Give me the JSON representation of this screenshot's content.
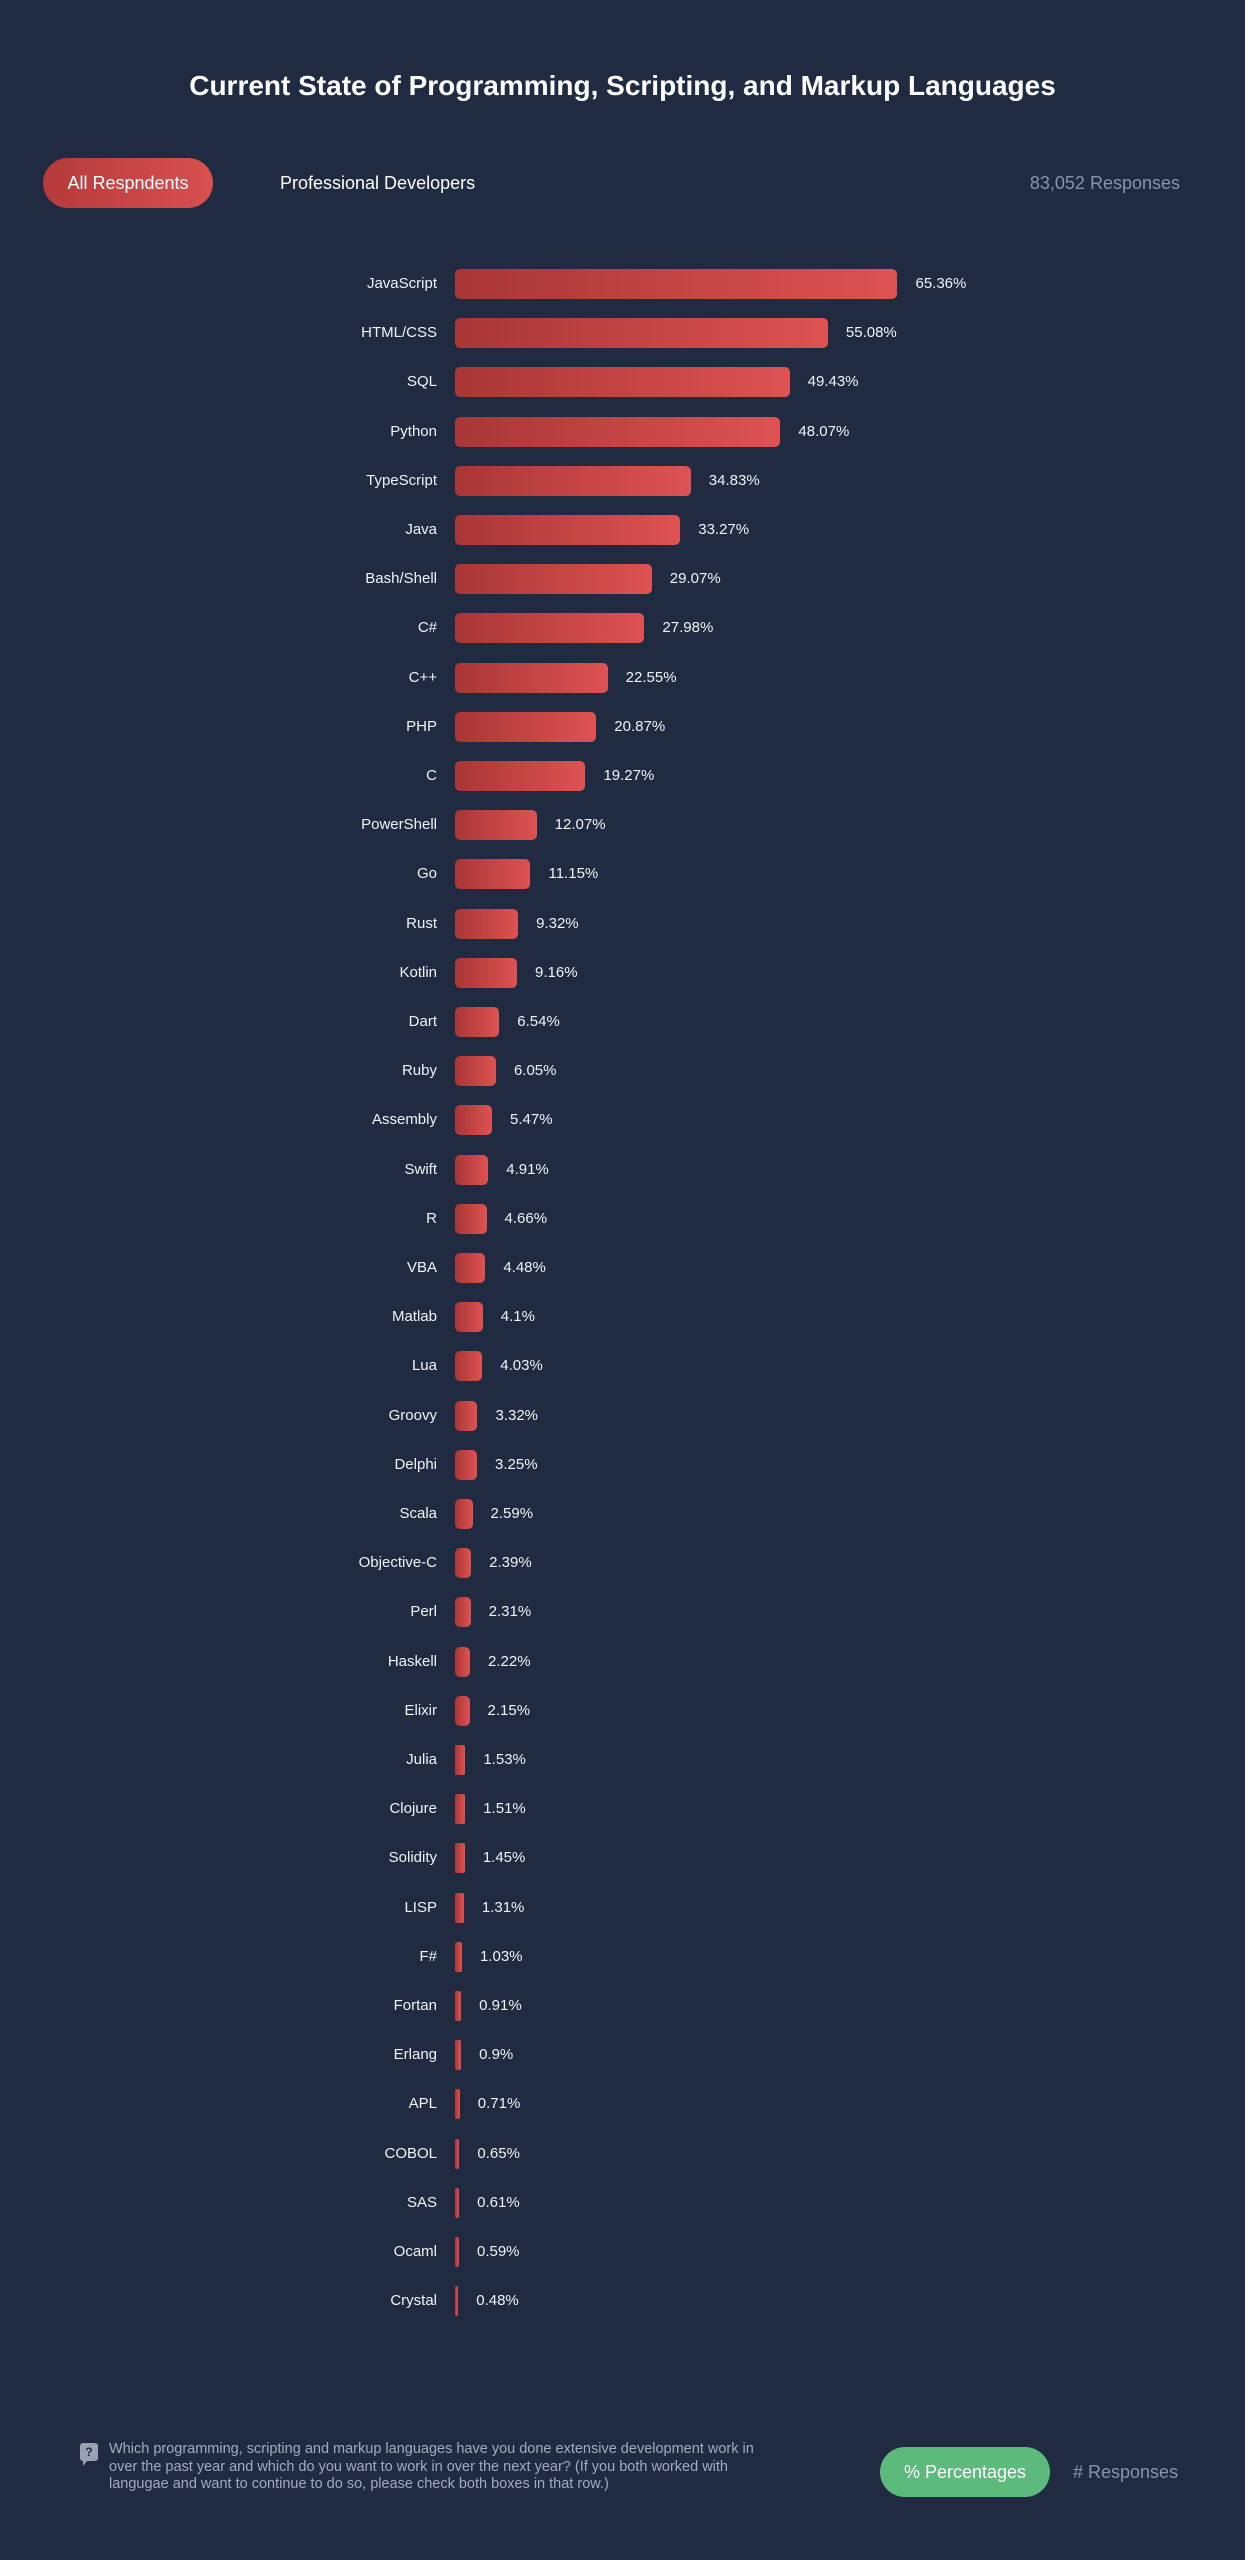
{
  "header": {
    "title": "Current State of Programming, Scripting, and Markup Languages",
    "tabs": [
      {
        "label": "All Respndents",
        "active": true
      },
      {
        "label": "Professional Developers",
        "active": false
      }
    ],
    "responses": "83,052 Responses"
  },
  "footer": {
    "question_icon": "question-bubble-icon",
    "question": "Which programming, scripting and markup languages have you done extensive development work in over the past year and which do you want to work in over the next year? (If you both worked with langugae and want to continue to do so, please check both boxes in that row.)",
    "toggle": [
      {
        "label": "% Percentages",
        "active": true
      },
      {
        "label": "# Responses",
        "active": false
      }
    ]
  },
  "colors": {
    "background": "#202b42",
    "bar_start": "#a93636",
    "bar_end": "#de5252",
    "active_toggle": "#5dba7d"
  },
  "chart_data": {
    "type": "bar",
    "orientation": "horizontal",
    "title": "Current State of Programming, Scripting, and Markup Languages",
    "unit": "%",
    "categories": [
      "JavaScript",
      "HTML/CSS",
      "SQL",
      "Python",
      "TypeScript",
      "Java",
      "Bash/Shell",
      "C#",
      "C++",
      "PHP",
      "C",
      "PowerShell",
      "Go",
      "Rust",
      "Kotlin",
      "Dart",
      "Ruby",
      "Assembly",
      "Swift",
      "R",
      "VBA",
      "Matlab",
      "Lua",
      "Groovy",
      "Delphi",
      "Scala",
      "Objective-C",
      "Perl",
      "Haskell",
      "Elixir",
      "Julia",
      "Clojure",
      "Solidity",
      "LISP",
      "F#",
      "Fortan",
      "Erlang",
      "APL",
      "COBOL",
      "SAS",
      "Ocaml",
      "Crystal"
    ],
    "values": [
      65.36,
      55.08,
      49.43,
      48.07,
      34.83,
      33.27,
      29.07,
      27.98,
      22.55,
      20.87,
      19.27,
      12.07,
      11.15,
      9.32,
      9.16,
      6.54,
      6.05,
      5.47,
      4.91,
      4.66,
      4.48,
      4.1,
      4.03,
      3.32,
      3.25,
      2.59,
      2.39,
      2.31,
      2.22,
      2.15,
      1.53,
      1.51,
      1.45,
      1.31,
      1.03,
      0.91,
      0.9,
      0.71,
      0.65,
      0.61,
      0.59,
      0.48
    ],
    "value_labels": [
      "65.36%",
      "55.08%",
      "49.43%",
      "48.07%",
      "34.83%",
      "33.27%",
      "29.07%",
      "27.98%",
      "22.55%",
      "20.87%",
      "19.27%",
      "12.07%",
      "11.15%",
      "9.32%",
      "9.16%",
      "6.54%",
      "6.05%",
      "5.47%",
      "4.91%",
      "4.66%",
      "4.48%",
      "4.1%",
      "4.03%",
      "3.32%",
      "3.25%",
      "2.59%",
      "2.39%",
      "2.31%",
      "2.22%",
      "2.15%",
      "1.53%",
      "1.51%",
      "1.45%",
      "1.31%",
      "1.03%",
      "0.91%",
      "0.9%",
      "0.71%",
      "0.65%",
      "0.61%",
      "0.59%",
      "0.48%"
    ],
    "grid": false
  }
}
